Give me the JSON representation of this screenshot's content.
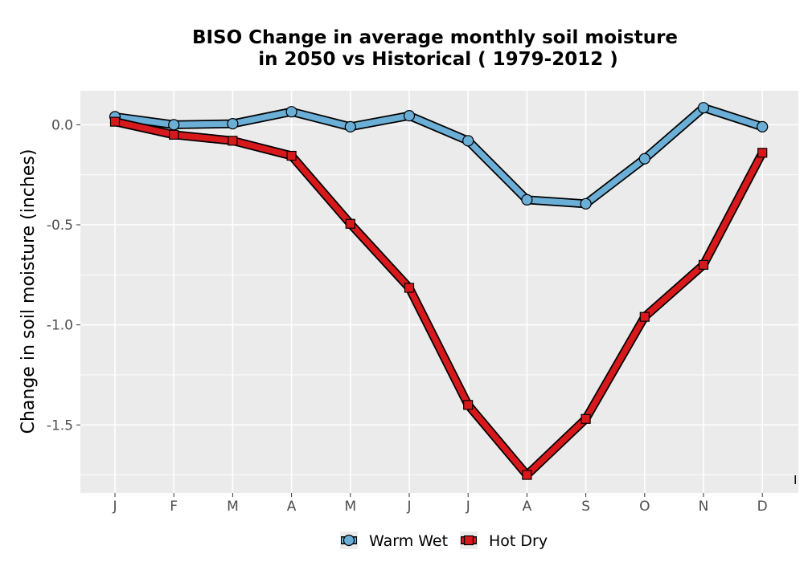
{
  "chart_data": {
    "type": "line",
    "title_line1": "BISO  Change in average monthly soil moisture",
    "title_line2": "in 2050 vs Historical ( 1979-2012 )",
    "xlabel": "",
    "ylabel": "Change in soil moisture (inches)",
    "categories": [
      "J",
      "F",
      "M",
      "A",
      "M",
      "J",
      "J",
      "A",
      "S",
      "O",
      "N",
      "D"
    ],
    "ylim": [
      -1.84,
      0.17
    ],
    "yticks": [
      0.0,
      -0.5,
      -1.0,
      -1.5
    ],
    "ytick_labels": [
      "0.0",
      "-0.5",
      "-1.0",
      "-1.5"
    ],
    "grid": true,
    "legend_position": "bottom",
    "stray_label": "I",
    "series": [
      {
        "name": "Warm Wet",
        "color": "#6baed6",
        "marker": "circle",
        "values": [
          0.04,
          0.0,
          0.005,
          0.065,
          -0.01,
          0.045,
          -0.08,
          -0.375,
          -0.395,
          -0.17,
          0.085,
          -0.01
        ]
      },
      {
        "name": "Hot Dry",
        "color": "#d7191c",
        "marker": "square",
        "values": [
          0.015,
          -0.05,
          -0.08,
          -0.155,
          -0.495,
          -0.815,
          -1.4,
          -1.75,
          -1.47,
          -0.96,
          -0.7,
          -0.14
        ]
      }
    ]
  }
}
